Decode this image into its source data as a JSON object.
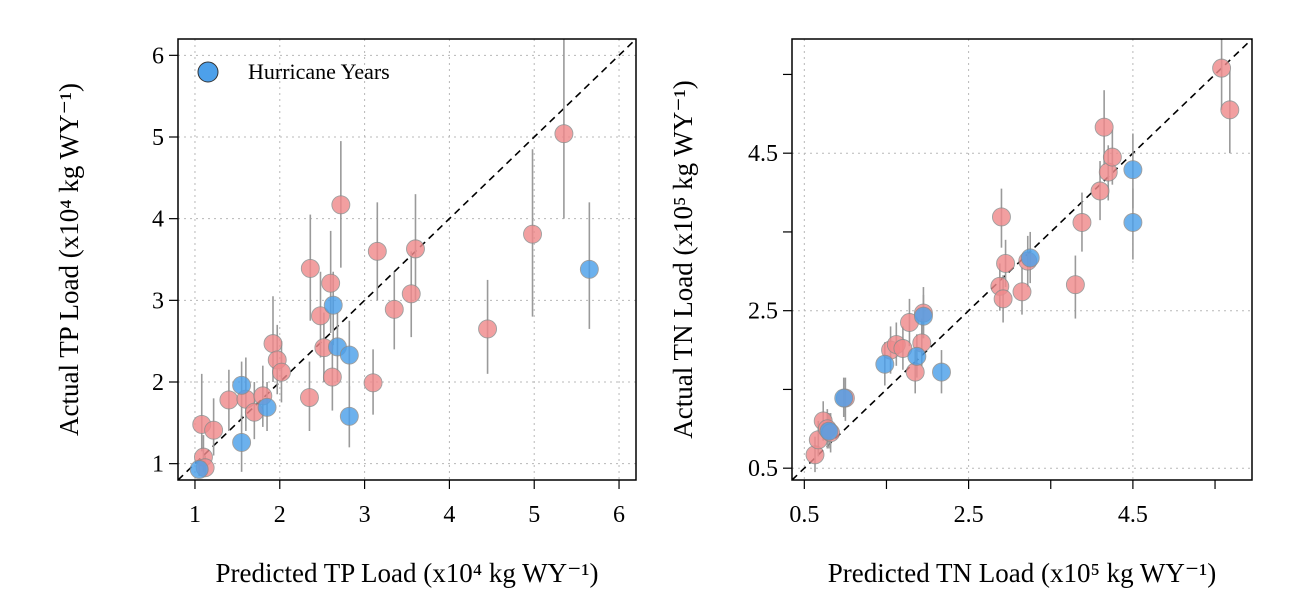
{
  "colors": {
    "hurricane": "#4da0ea",
    "normal": "#f08a8c",
    "error_bar": "#9a9a9a",
    "reference_line": "#000000"
  },
  "legend": {
    "label": "Hurricane Years",
    "placement": "top-left"
  },
  "chart_data": [
    {
      "type": "scatter",
      "xlabel": "Predicted TP Load (x10⁴ kg WY⁻¹)",
      "ylabel": "Actual TP Load (x10⁴ kg WY⁻¹)",
      "xlim": [
        0.8,
        6.2
      ],
      "ylim": [
        0.8,
        6.2
      ],
      "xticks": [
        1,
        2,
        3,
        4,
        5,
        6
      ],
      "yticks": [
        1,
        2,
        3,
        4,
        5,
        6
      ],
      "xtick_labels": [
        "1",
        "2",
        "3",
        "4",
        "5",
        "6"
      ],
      "ytick_labels": [
        "1",
        "2",
        "3",
        "4",
        "5",
        "6"
      ],
      "minor_xticks": [],
      "grid_x": [
        1,
        2,
        3,
        4,
        5,
        6
      ],
      "grid_y": [
        1,
        2,
        3,
        4,
        5,
        6
      ],
      "grid": true,
      "reference_line": "1:1 dashed",
      "legend": {
        "label": "Hurricane Years",
        "placement": "top-left"
      },
      "series": [
        {
          "name": "Hurricane Years",
          "color": "#4da0ea",
          "points": [
            {
              "x": 1.05,
              "y": 0.93,
              "ylo": 0.85,
              "yhi": 1.05
            },
            {
              "x": 1.55,
              "y": 1.96,
              "ylo": 1.55,
              "yhi": 2.25
            },
            {
              "x": 1.55,
              "y": 1.26,
              "ylo": 0.9,
              "yhi": 1.6
            },
            {
              "x": 1.85,
              "y": 1.69,
              "ylo": 1.4,
              "yhi": 2.0
            },
            {
              "x": 2.63,
              "y": 2.94,
              "ylo": 2.45,
              "yhi": 3.35
            },
            {
              "x": 2.68,
              "y": 2.43,
              "ylo": 2.0,
              "yhi": 2.85
            },
            {
              "x": 2.82,
              "y": 2.33,
              "ylo": 1.9,
              "yhi": 2.75
            },
            {
              "x": 2.82,
              "y": 1.58,
              "ylo": 1.2,
              "yhi": 1.95
            },
            {
              "x": 5.65,
              "y": 3.38,
              "ylo": 2.65,
              "yhi": 4.2
            }
          ]
        },
        {
          "name": "",
          "color": "#f08a8c",
          "points": [
            {
              "x": 1.08,
              "y": 1.48,
              "ylo": 1.15,
              "yhi": 2.1
            },
            {
              "x": 1.1,
              "y": 1.08,
              "ylo": 0.9,
              "yhi": 1.35
            },
            {
              "x": 1.12,
              "y": 0.95,
              "ylo": 0.85,
              "yhi": 1.1
            },
            {
              "x": 1.22,
              "y": 1.41,
              "ylo": 1.1,
              "yhi": 1.8
            },
            {
              "x": 1.4,
              "y": 1.78,
              "ylo": 1.4,
              "yhi": 2.15
            },
            {
              "x": 1.6,
              "y": 1.79,
              "ylo": 1.4,
              "yhi": 2.3
            },
            {
              "x": 1.7,
              "y": 1.63,
              "ylo": 1.3,
              "yhi": 2.0
            },
            {
              "x": 1.8,
              "y": 1.83,
              "ylo": 1.45,
              "yhi": 2.2
            },
            {
              "x": 1.92,
              "y": 2.47,
              "ylo": 2.0,
              "yhi": 3.05
            },
            {
              "x": 1.97,
              "y": 2.27,
              "ylo": 1.85,
              "yhi": 2.7
            },
            {
              "x": 2.02,
              "y": 2.12,
              "ylo": 1.75,
              "yhi": 2.5
            },
            {
              "x": 2.36,
              "y": 3.39,
              "ylo": 2.75,
              "yhi": 4.05
            },
            {
              "x": 2.35,
              "y": 1.81,
              "ylo": 1.4,
              "yhi": 2.25
            },
            {
              "x": 2.48,
              "y": 2.81,
              "ylo": 2.3,
              "yhi": 3.35
            },
            {
              "x": 2.52,
              "y": 2.42,
              "ylo": 2.0,
              "yhi": 2.85
            },
            {
              "x": 2.6,
              "y": 3.21,
              "ylo": 2.6,
              "yhi": 3.85
            },
            {
              "x": 2.62,
              "y": 2.06,
              "ylo": 1.65,
              "yhi": 2.5
            },
            {
              "x": 2.72,
              "y": 4.17,
              "ylo": 3.4,
              "yhi": 4.95
            },
            {
              "x": 3.1,
              "y": 1.99,
              "ylo": 1.6,
              "yhi": 2.4
            },
            {
              "x": 3.15,
              "y": 3.6,
              "ylo": 3.0,
              "yhi": 4.2
            },
            {
              "x": 3.35,
              "y": 2.89,
              "ylo": 2.4,
              "yhi": 3.35
            },
            {
              "x": 3.55,
              "y": 3.08,
              "ylo": 2.55,
              "yhi": 3.6
            },
            {
              "x": 3.6,
              "y": 3.63,
              "ylo": 3.0,
              "yhi": 4.3
            },
            {
              "x": 4.45,
              "y": 2.65,
              "ylo": 2.1,
              "yhi": 3.25
            },
            {
              "x": 4.98,
              "y": 3.81,
              "ylo": 2.8,
              "yhi": 4.85
            },
            {
              "x": 5.35,
              "y": 5.04,
              "ylo": 4.0,
              "yhi": 6.2
            }
          ]
        }
      ]
    },
    {
      "type": "scatter",
      "xlabel": "Predicted TN Load (x10⁵ kg WY⁻¹)",
      "ylabel": "Actual TN Load (x10⁵ kg WY⁻¹)",
      "xlim": [
        0.35,
        5.95
      ],
      "ylim": [
        0.35,
        5.95
      ],
      "xticks": [
        0.5,
        2.5,
        4.5
      ],
      "yticks": [
        0.5,
        2.5,
        4.5
      ],
      "xtick_labels": [
        "0.5",
        "2.5",
        "4.5"
      ],
      "ytick_labels": [
        "0.5",
        "2.5",
        "4.5"
      ],
      "minor_xticks": [
        1.5,
        3.5,
        5.5
      ],
      "minor_yticks": [
        1.5,
        3.5,
        5.5
      ],
      "grid_x": [
        0.5,
        2.5,
        4.5
      ],
      "grid_y": [
        0.5,
        2.5,
        4.5
      ],
      "grid": true,
      "reference_line": "1:1 dashed",
      "series": [
        {
          "name": "Hurricane Years",
          "color": "#4da0ea",
          "points": [
            {
              "x": 0.8,
              "y": 0.97,
              "ylo": 0.75,
              "yhi": 1.2
            },
            {
              "x": 0.98,
              "y": 1.39,
              "ylo": 1.15,
              "yhi": 1.65
            },
            {
              "x": 1.48,
              "y": 1.82,
              "ylo": 1.55,
              "yhi": 2.1
            },
            {
              "x": 1.87,
              "y": 1.92,
              "ylo": 1.65,
              "yhi": 2.2
            },
            {
              "x": 1.95,
              "y": 2.43,
              "ylo": 2.15,
              "yhi": 2.7
            },
            {
              "x": 2.17,
              "y": 1.72,
              "ylo": 1.45,
              "yhi": 2.0
            },
            {
              "x": 3.25,
              "y": 3.17,
              "ylo": 2.85,
              "yhi": 3.5
            },
            {
              "x": 4.5,
              "y": 4.29,
              "ylo": 3.8,
              "yhi": 4.75
            },
            {
              "x": 4.5,
              "y": 3.62,
              "ylo": 3.15,
              "yhi": 4.05
            }
          ]
        },
        {
          "name": "",
          "color": "#f08a8c",
          "points": [
            {
              "x": 0.63,
              "y": 0.67,
              "ylo": 0.45,
              "yhi": 0.9
            },
            {
              "x": 0.67,
              "y": 0.86,
              "ylo": 0.65,
              "yhi": 1.1
            },
            {
              "x": 0.73,
              "y": 1.1,
              "ylo": 0.85,
              "yhi": 1.35
            },
            {
              "x": 0.78,
              "y": 1.0,
              "ylo": 0.75,
              "yhi": 1.25
            },
            {
              "x": 0.82,
              "y": 0.95,
              "ylo": 0.7,
              "yhi": 1.2
            },
            {
              "x": 1.0,
              "y": 1.39,
              "ylo": 1.1,
              "yhi": 1.65
            },
            {
              "x": 1.55,
              "y": 2.0,
              "ylo": 1.7,
              "yhi": 2.3
            },
            {
              "x": 1.62,
              "y": 2.07,
              "ylo": 1.8,
              "yhi": 2.35
            },
            {
              "x": 1.7,
              "y": 2.02,
              "ylo": 1.75,
              "yhi": 2.3
            },
            {
              "x": 1.78,
              "y": 2.35,
              "ylo": 2.05,
              "yhi": 2.65
            },
            {
              "x": 1.85,
              "y": 1.72,
              "ylo": 1.45,
              "yhi": 2.0
            },
            {
              "x": 1.93,
              "y": 2.09,
              "ylo": 1.8,
              "yhi": 2.4
            },
            {
              "x": 1.95,
              "y": 2.47,
              "ylo": 2.15,
              "yhi": 2.8
            },
            {
              "x": 2.88,
              "y": 2.81,
              "ylo": 2.5,
              "yhi": 3.1
            },
            {
              "x": 2.9,
              "y": 3.69,
              "ylo": 3.3,
              "yhi": 4.05
            },
            {
              "x": 2.92,
              "y": 2.65,
              "ylo": 2.35,
              "yhi": 2.95
            },
            {
              "x": 2.95,
              "y": 3.1,
              "ylo": 2.8,
              "yhi": 3.4
            },
            {
              "x": 3.15,
              "y": 2.74,
              "ylo": 2.45,
              "yhi": 3.05
            },
            {
              "x": 3.22,
              "y": 3.13,
              "ylo": 2.8,
              "yhi": 3.45
            },
            {
              "x": 3.8,
              "y": 2.83,
              "ylo": 2.4,
              "yhi": 3.2
            },
            {
              "x": 3.88,
              "y": 3.62,
              "ylo": 3.25,
              "yhi": 4.0
            },
            {
              "x": 4.1,
              "y": 4.02,
              "ylo": 3.65,
              "yhi": 4.4
            },
            {
              "x": 4.15,
              "y": 4.83,
              "ylo": 4.35,
              "yhi": 5.3
            },
            {
              "x": 4.2,
              "y": 4.26,
              "ylo": 3.9,
              "yhi": 4.6
            },
            {
              "x": 4.25,
              "y": 4.45,
              "ylo": 4.1,
              "yhi": 4.8
            },
            {
              "x": 5.58,
              "y": 5.58,
              "ylo": 5.05,
              "yhi": 6.05
            },
            {
              "x": 5.68,
              "y": 5.05,
              "ylo": 4.5,
              "yhi": 5.55
            }
          ]
        }
      ]
    }
  ]
}
